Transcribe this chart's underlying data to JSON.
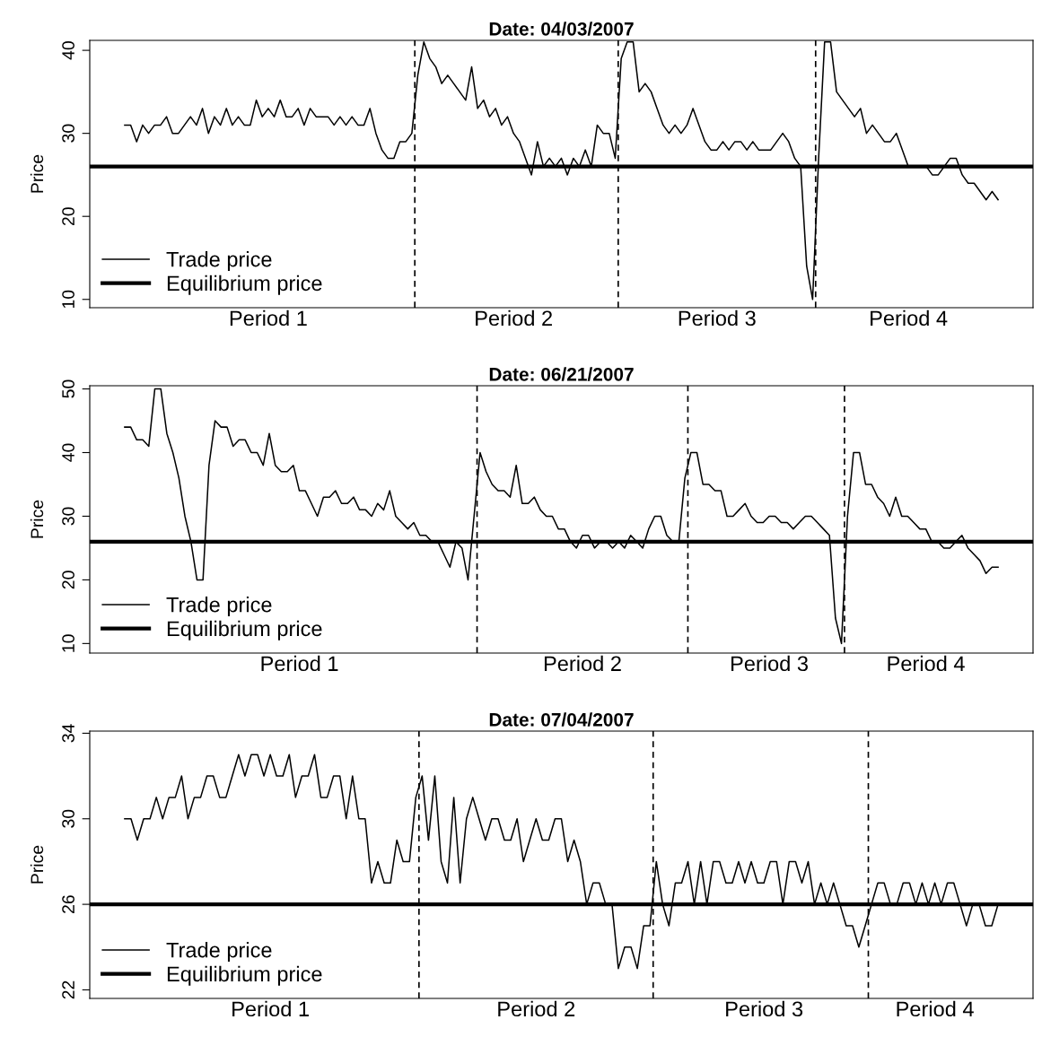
{
  "chart_data": [
    {
      "type": "line",
      "title": "Date: 04/03/2007",
      "ylabel": "Price",
      "ylim": [
        9,
        41.2
      ],
      "yticks": [
        10,
        20,
        30,
        40
      ],
      "legend": "bottom left",
      "grid": false,
      "categories": [
        null,
        null,
        null,
        null,
        null,
        null,
        null,
        null,
        null,
        null,
        null,
        null,
        null,
        null,
        null,
        null,
        null,
        null,
        null,
        null,
        null,
        null,
        null,
        null,
        "Period 1",
        null,
        null,
        null,
        null,
        null,
        null,
        null,
        null,
        null,
        null,
        null,
        null,
        null,
        null,
        null,
        null,
        null,
        null,
        null,
        null,
        null,
        null,
        null,
        null,
        null,
        null,
        null,
        null,
        null,
        null,
        null,
        null,
        null,
        null,
        null,
        null,
        null,
        null,
        null,
        null,
        "Period 2",
        null,
        null,
        null,
        null,
        null,
        null,
        null,
        null,
        null,
        null,
        null,
        null,
        null,
        null,
        null,
        null,
        null,
        null,
        null,
        null,
        null,
        null,
        null,
        null,
        null,
        null,
        null,
        null,
        null,
        null,
        null,
        null,
        null,
        "Period 3",
        null,
        null,
        null,
        null,
        null,
        null,
        null,
        null,
        null,
        null,
        null,
        null,
        null,
        null,
        null,
        null,
        null,
        null,
        null,
        null,
        null,
        null,
        null,
        null,
        null,
        null,
        null,
        null,
        null,
        null,
        null,
        "Period 4",
        null,
        null,
        null,
        null,
        null,
        null,
        null,
        null,
        null,
        null,
        null,
        null,
        null,
        null,
        null
      ],
      "ref_lines": [
        {
          "axis": "y",
          "value": 26,
          "label": "Equilibrium price",
          "color": "#000000",
          "line_style": "solid"
        }
      ],
      "series": [
        {
          "name": "Trade price",
          "color": "#000000",
          "line_style": "solid",
          "values": [
            31,
            31,
            29,
            31,
            30,
            31,
            31,
            32,
            30,
            30,
            31,
            32,
            31,
            33,
            30,
            32,
            31,
            33,
            31,
            32,
            31,
            31,
            34,
            32,
            33,
            32,
            34,
            32,
            32,
            33,
            31,
            33,
            32,
            32,
            32,
            31,
            32,
            31,
            32,
            31,
            31,
            33,
            30,
            28,
            27,
            27,
            29,
            29,
            30,
            37,
            41,
            39,
            38,
            36,
            37,
            36,
            35,
            34,
            38,
            33,
            34,
            32,
            33,
            31,
            32,
            30,
            29,
            27,
            25,
            29,
            26,
            27,
            26,
            27,
            25,
            27,
            26,
            28,
            26,
            31,
            30,
            30,
            27,
            39,
            41,
            41,
            35,
            36,
            35,
            33,
            31,
            30,
            31,
            30,
            31,
            33,
            31,
            29,
            28,
            28,
            29,
            28,
            29,
            29,
            28,
            29,
            28,
            28,
            28,
            29,
            30,
            29,
            27,
            26,
            14,
            10,
            27,
            41,
            41,
            35,
            34,
            33,
            32,
            33,
            30,
            31,
            30,
            29,
            29,
            30,
            28,
            26,
            26,
            26,
            26,
            25,
            25,
            26,
            27,
            27,
            25,
            24,
            24,
            23,
            22,
            23,
            22
          ]
        }
      ]
    },
    {
      "type": "line",
      "title": "Date: 06/21/2007",
      "ylabel": "Price",
      "ylim": [
        8.5,
        50.5
      ],
      "yticks": [
        10,
        20,
        30,
        40,
        50
      ],
      "legend": "bottom left",
      "grid": false,
      "categories": [
        null,
        null,
        null,
        null,
        null,
        null,
        null,
        null,
        null,
        null,
        null,
        null,
        null,
        null,
        null,
        null,
        null,
        null,
        null,
        null,
        null,
        null,
        null,
        null,
        null,
        null,
        null,
        null,
        null,
        "Period 1",
        null,
        null,
        null,
        null,
        null,
        null,
        null,
        null,
        null,
        null,
        null,
        null,
        null,
        null,
        null,
        null,
        null,
        null,
        null,
        null,
        null,
        null,
        null,
        null,
        null,
        null,
        null,
        null,
        null,
        null,
        null,
        null,
        null,
        null,
        null,
        null,
        null,
        null,
        null,
        null,
        null,
        null,
        null,
        null,
        null,
        null,
        "Period 2",
        null,
        null,
        null,
        null,
        null,
        null,
        null,
        null,
        null,
        null,
        null,
        null,
        null,
        null,
        null,
        null,
        null,
        null,
        null,
        null,
        null,
        null,
        null,
        null,
        null,
        null,
        null,
        null,
        null,
        null,
        "Period 3",
        null,
        null,
        null,
        null,
        null,
        null,
        null,
        null,
        null,
        null,
        null,
        null,
        null,
        null,
        null,
        null,
        null,
        null,
        null,
        null,
        null,
        null,
        null,
        null,
        null,
        "Period 4",
        null,
        null,
        null,
        null,
        null,
        null,
        null,
        null,
        null,
        null,
        null,
        null
      ],
      "ref_lines": [
        {
          "axis": "y",
          "value": 26,
          "label": "Equilibrium price",
          "color": "#000000",
          "line_style": "solid"
        }
      ],
      "series": [
        {
          "name": "Trade price",
          "color": "#000000",
          "line_style": "solid",
          "values": [
            44,
            44,
            42,
            42,
            41,
            50,
            50,
            43,
            40,
            36,
            30,
            26,
            20,
            20,
            38,
            45,
            44,
            44,
            41,
            42,
            42,
            40,
            40,
            38,
            43,
            38,
            37,
            37,
            38,
            34,
            34,
            32,
            30,
            33,
            33,
            34,
            32,
            32,
            33,
            31,
            31,
            30,
            32,
            31,
            34,
            30,
            29,
            28,
            29,
            27,
            27,
            26,
            26,
            24,
            22,
            26,
            25,
            20,
            30,
            40,
            37,
            35,
            34,
            34,
            33,
            38,
            32,
            32,
            33,
            31,
            30,
            30,
            28,
            28,
            26,
            25,
            27,
            27,
            25,
            26,
            26,
            25,
            26,
            25,
            27,
            26,
            25,
            28,
            30,
            30,
            27,
            26,
            26,
            36,
            40,
            40,
            35,
            35,
            34,
            34,
            30,
            30,
            31,
            32,
            30,
            29,
            29,
            30,
            30,
            29,
            29,
            28,
            29,
            30,
            30,
            29,
            28,
            27,
            14,
            10,
            30,
            40,
            40,
            35,
            35,
            33,
            32,
            30,
            33,
            30,
            30,
            29,
            28,
            28,
            26,
            26,
            25,
            25,
            26,
            27,
            25,
            24,
            23,
            21,
            22,
            22
          ]
        }
      ]
    },
    {
      "type": "line",
      "title": "Date: 07/04/2007",
      "ylabel": "Price",
      "ylim": [
        21.6,
        34.1
      ],
      "yticks": [
        22,
        26,
        30,
        34
      ],
      "legend": "bottom left",
      "grid": false,
      "categories": [
        null,
        null,
        null,
        null,
        null,
        null,
        null,
        null,
        null,
        null,
        null,
        null,
        null,
        null,
        null,
        null,
        null,
        null,
        null,
        null,
        null,
        null,
        null,
        "Period 1",
        null,
        null,
        null,
        null,
        null,
        null,
        null,
        null,
        null,
        null,
        null,
        null,
        null,
        null,
        null,
        null,
        null,
        null,
        null,
        null,
        null,
        null,
        null,
        null,
        null,
        null,
        null,
        null,
        null,
        null,
        null,
        null,
        null,
        null,
        null,
        null,
        null,
        null,
        null,
        null,
        null,
        "Period 2",
        null,
        null,
        null,
        null,
        null,
        null,
        null,
        null,
        null,
        null,
        null,
        null,
        null,
        null,
        null,
        null,
        null,
        null,
        null,
        null,
        null,
        null,
        null,
        null,
        null,
        null,
        null,
        null,
        null,
        null,
        null,
        null,
        null,
        null,
        null,
        "Period 3",
        null,
        null,
        null,
        null,
        null,
        null,
        null,
        null,
        null,
        null,
        null,
        null,
        null,
        null,
        null,
        null,
        null,
        null,
        null,
        null,
        null,
        null,
        null,
        null,
        null,
        null,
        "Period 4",
        null,
        null,
        null,
        null,
        null,
        null,
        null,
        null,
        null,
        null
      ],
      "ref_lines": [
        {
          "axis": "y",
          "value": 26,
          "label": "Equilibrium price",
          "color": "#000000",
          "line_style": "solid"
        }
      ],
      "series": [
        {
          "name": "Trade price",
          "color": "#000000",
          "line_style": "solid",
          "values": [
            30,
            30,
            29,
            30,
            30,
            31,
            30,
            31,
            31,
            32,
            30,
            31,
            31,
            32,
            32,
            31,
            31,
            32,
            33,
            32,
            33,
            33,
            32,
            33,
            32,
            32,
            33,
            31,
            32,
            32,
            33,
            31,
            31,
            32,
            32,
            30,
            32,
            30,
            30,
            27,
            28,
            27,
            27,
            29,
            28,
            28,
            31,
            32,
            29,
            32,
            28,
            27,
            31,
            27,
            30,
            31,
            30,
            29,
            30,
            30,
            29,
            29,
            30,
            28,
            29,
            30,
            29,
            29,
            30,
            30,
            28,
            29,
            28,
            26,
            27,
            27,
            26,
            26,
            23,
            24,
            24,
            23,
            25,
            25,
            28,
            26,
            25,
            27,
            27,
            28,
            26,
            28,
            26,
            28,
            28,
            27,
            27,
            28,
            27,
            28,
            27,
            27,
            28,
            28,
            26,
            28,
            28,
            27,
            28,
            26,
            27,
            26,
            27,
            26,
            25,
            25,
            24,
            25,
            26,
            27,
            27,
            26,
            26,
            27,
            27,
            26,
            27,
            26,
            27,
            26,
            27,
            27,
            26,
            25,
            26,
            26,
            25,
            25,
            26
          ]
        }
      ]
    }
  ]
}
